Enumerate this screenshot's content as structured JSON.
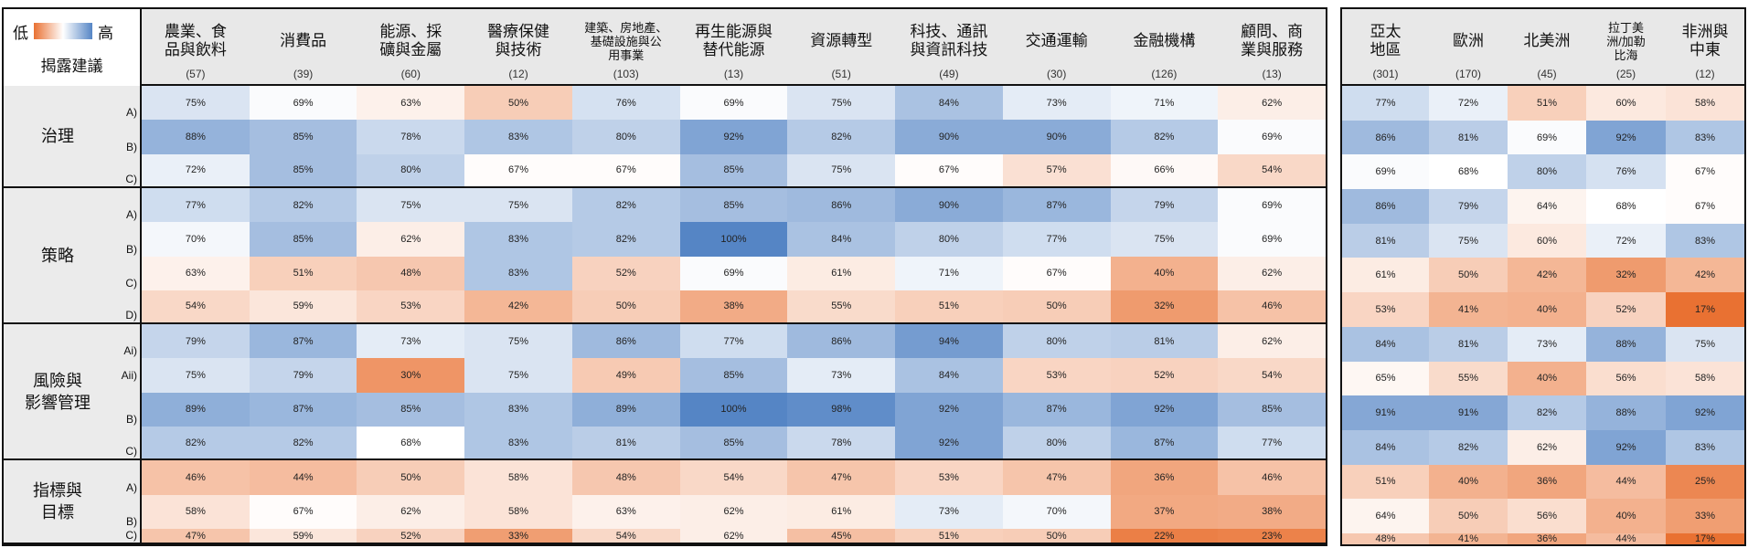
{
  "legend": {
    "low": "低",
    "high": "高",
    "title": "揭露建議",
    "low_color": "#e97132",
    "mid_color": "#ffffff",
    "high_color": "#5585c5"
  },
  "chart_data": {
    "type": "heatmap",
    "unit": "%",
    "sectors": [
      {
        "name": "農業、食\n品與飲料",
        "n": "(57)"
      },
      {
        "name": "消費品",
        "n": "(39)"
      },
      {
        "name": "能源、採\n礦與金屬",
        "n": "(60)"
      },
      {
        "name": "醫療保健\n與技術",
        "n": "(12)"
      },
      {
        "name": "建築、房地產、\n基礎設施與公\n用事業",
        "n": "(103)"
      },
      {
        "name": "再生能源與\n替代能源",
        "n": "(13)"
      },
      {
        "name": "資源轉型",
        "n": "(51)"
      },
      {
        "name": "科技、通訊\n與資訊科技",
        "n": "(49)"
      },
      {
        "name": "交通運輸",
        "n": "(30)"
      },
      {
        "name": "金融機構",
        "n": "(126)"
      },
      {
        "name": "顧問、商\n業與服務",
        "n": "(13)"
      }
    ],
    "regions": [
      {
        "name": "亞太\n地區",
        "n": "(301)"
      },
      {
        "name": "歐洲",
        "n": "(170)"
      },
      {
        "name": "北美洲",
        "n": "(45)"
      },
      {
        "name": "拉丁美\n洲/加勒\n比海",
        "n": "(25)"
      },
      {
        "name": "非洲與\n中東",
        "n": "(12)"
      }
    ],
    "groups": [
      {
        "label": "治理",
        "rows": [
          {
            "code": "A)",
            "sectors": [
              75,
              69,
              63,
              50,
              76,
              69,
              75,
              84,
              73,
              71,
              62
            ],
            "regions": [
              77,
              72,
              51,
              60,
              58
            ]
          },
          {
            "code": "B)",
            "sectors": [
              88,
              85,
              78,
              83,
              80,
              92,
              82,
              90,
              90,
              82,
              69
            ],
            "regions": [
              86,
              81,
              69,
              92,
              83
            ]
          },
          {
            "code": "C)",
            "sectors": [
              72,
              85,
              80,
              67,
              67,
              85,
              75,
              67,
              57,
              66,
              54
            ],
            "regions": [
              69,
              68,
              80,
              76,
              67
            ]
          }
        ]
      },
      {
        "label": "策略",
        "rows": [
          {
            "code": "A)",
            "sectors": [
              77,
              82,
              75,
              75,
              82,
              85,
              86,
              90,
              87,
              79,
              69
            ],
            "regions": [
              86,
              79,
              64,
              68,
              67
            ]
          },
          {
            "code": "B)",
            "sectors": [
              70,
              85,
              62,
              83,
              82,
              100,
              84,
              80,
              77,
              75,
              69
            ],
            "regions": [
              81,
              75,
              60,
              72,
              83
            ]
          },
          {
            "code": "C)",
            "sectors": [
              63,
              51,
              48,
              83,
              52,
              69,
              61,
              71,
              67,
              40,
              62
            ],
            "regions": [
              61,
              50,
              42,
              32,
              42
            ]
          },
          {
            "code": "D)",
            "sectors": [
              54,
              59,
              53,
              42,
              50,
              38,
              55,
              51,
              50,
              32,
              46
            ],
            "regions": [
              53,
              41,
              40,
              52,
              17
            ]
          }
        ]
      },
      {
        "label": "風險與\n影響管理",
        "rows": [
          {
            "code": "Ai)",
            "sectors": [
              79,
              87,
              73,
              75,
              86,
              77,
              86,
              94,
              80,
              81,
              62
            ],
            "regions": [
              84,
              81,
              73,
              88,
              75
            ]
          },
          {
            "code": "Aii)",
            "sectors": [
              75,
              79,
              30,
              75,
              49,
              85,
              73,
              84,
              53,
              52,
              54
            ],
            "regions": [
              65,
              55,
              40,
              56,
              58
            ]
          },
          {
            "code": "B)",
            "sectors": [
              89,
              87,
              85,
              83,
              89,
              100,
              98,
              92,
              87,
              92,
              85
            ],
            "regions": [
              91,
              91,
              82,
              88,
              92
            ]
          },
          {
            "code": "C)",
            "sectors": [
              82,
              82,
              68,
              83,
              81,
              85,
              78,
              92,
              80,
              87,
              77
            ],
            "regions": [
              84,
              82,
              62,
              92,
              83
            ]
          }
        ]
      },
      {
        "label": "指標與\n目標",
        "rows": [
          {
            "code": "A)",
            "sectors": [
              46,
              44,
              50,
              58,
              48,
              54,
              47,
              53,
              47,
              36,
              46
            ],
            "regions": [
              51,
              40,
              36,
              44,
              25
            ]
          },
          {
            "code": "B)",
            "sectors": [
              58,
              67,
              62,
              58,
              63,
              62,
              61,
              73,
              70,
              37,
              38
            ],
            "regions": [
              64,
              50,
              56,
              40,
              33
            ]
          },
          {
            "code": "C)",
            "sectors": [
              47,
              59,
              52,
              33,
              54,
              62,
              45,
              51,
              50,
              22,
              23
            ],
            "regions": [
              48,
              41,
              36,
              44,
              17
            ]
          }
        ]
      }
    ]
  }
}
